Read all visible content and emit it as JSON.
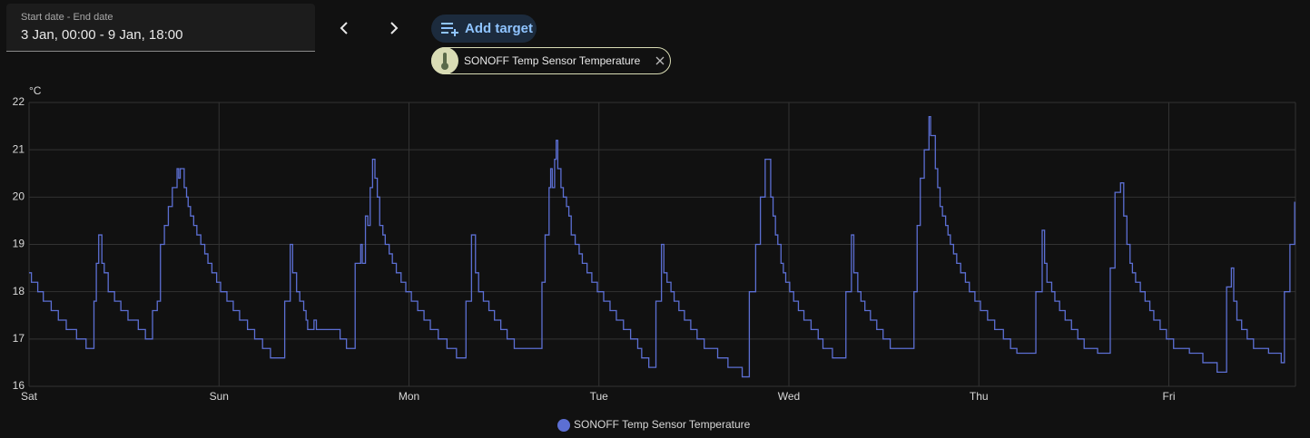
{
  "date_picker": {
    "label": "Start date - End date",
    "value": "3 Jan, 00:00 - 9 Jan, 18:00"
  },
  "add_target": "Add target",
  "target_chip": "SONOFF Temp Sensor Temperature",
  "chart_data": {
    "type": "line",
    "step": "after",
    "y_label": "°C",
    "grid": true,
    "legend": "bottom",
    "xlim": [
      0,
      160
    ],
    "xticks": [
      {
        "value": 0,
        "label": "Sat"
      },
      {
        "value": 24,
        "label": "Sun"
      },
      {
        "value": 48,
        "label": "Mon"
      },
      {
        "value": 72,
        "label": "Tue"
      },
      {
        "value": 96,
        "label": "Wed"
      },
      {
        "value": 120,
        "label": "Thu"
      },
      {
        "value": 144,
        "label": "Fri"
      }
    ],
    "ylim": [
      16,
      22
    ],
    "yticks": [
      16,
      17,
      18,
      19,
      20,
      21,
      22
    ],
    "x": [
      0,
      0.3,
      1.1,
      1.8,
      2.8,
      3.7,
      4.7,
      6.0,
      7.2,
      8.2,
      8.5,
      8.8,
      9.2,
      9.5,
      10.0,
      10.8,
      11.6,
      12.5,
      13.8,
      14.7,
      15.6,
      16.2,
      16.6,
      17.1,
      17.6,
      18.1,
      18.7,
      18.9,
      19.1,
      19.6,
      19.9,
      20.1,
      20.4,
      20.8,
      21.2,
      21.7,
      22.2,
      22.6,
      23.1,
      23.7,
      24.2,
      25.0,
      25.8,
      26.6,
      27.6,
      28.5,
      29.5,
      30.5,
      32.3,
      33.0,
      33.3,
      33.8,
      34.2,
      34.7,
      35.0,
      35.2,
      36.0,
      36.3,
      39.3,
      40.1,
      41.2,
      41.9,
      42.1,
      42.5,
      42.8,
      43.1,
      43.4,
      43.7,
      44.0,
      44.3,
      44.7,
      45.0,
      45.5,
      45.9,
      46.4,
      47.0,
      47.6,
      48.3,
      49.1,
      49.9,
      50.7,
      51.7,
      52.8,
      54.0,
      55.2,
      55.9,
      56.4,
      56.8,
      57.4,
      58.1,
      58.8,
      59.6,
      60.4,
      61.3,
      64.8,
      65.2,
      65.7,
      65.9,
      66.1,
      66.4,
      66.6,
      66.8,
      67.2,
      67.5,
      67.9,
      68.2,
      68.5,
      69.0,
      69.5,
      69.9,
      70.5,
      71.1,
      71.8,
      72.6,
      73.4,
      74.2,
      75.1,
      76.0,
      76.9,
      77.4,
      78.3,
      79.2,
      79.9,
      80.2,
      80.6,
      81.1,
      81.5,
      82.1,
      82.8,
      83.6,
      84.4,
      85.3,
      87.0,
      88.3,
      90.1,
      91.0,
      91.8,
      92.4,
      93.0,
      93.7,
      94.0,
      94.3,
      94.6,
      95.0,
      95.3,
      95.6,
      96.1,
      96.6,
      97.2,
      97.9,
      98.8,
      99.7,
      100.3,
      101.5,
      103.2,
      103.9,
      104.2,
      104.7,
      105.1,
      105.6,
      106.3,
      107.1,
      107.9,
      108.8,
      111.8,
      112.2,
      112.6,
      113.1,
      113.7,
      113.9,
      114.5,
      114.8,
      115.1,
      115.4,
      115.8,
      116.1,
      116.4,
      116.8,
      117.2,
      117.7,
      118.3,
      118.8,
      119.5,
      120.2,
      121.1,
      122.0,
      123.1,
      124.0,
      124.8,
      127.2,
      128.0,
      128.3,
      128.6,
      129.2,
      129.6,
      130.2,
      130.9,
      131.7,
      132.5,
      133.3,
      135.0,
      136.6,
      137.2,
      137.9,
      138.3,
      138.7,
      139.1,
      139.4,
      139.8,
      140.4,
      141.0,
      141.6,
      142.1,
      142.9,
      143.7,
      144.6,
      146.6,
      148.3,
      150.1,
      151.3,
      151.9,
      152.2,
      152.6,
      153.2,
      153.9,
      154.7,
      156.6,
      158.2,
      158.6,
      159.3,
      159.9
    ],
    "series": [
      {
        "name": "SONOFF Temp Sensor Temperature",
        "color": "#5c6fd3",
        "values": [
          18.4,
          18.2,
          18.0,
          17.8,
          17.6,
          17.4,
          17.2,
          17.0,
          16.8,
          17.8,
          18.6,
          19.2,
          18.6,
          18.4,
          18.0,
          17.8,
          17.6,
          17.4,
          17.2,
          17.0,
          17.6,
          17.8,
          19.0,
          19.4,
          19.8,
          20.2,
          20.6,
          20.4,
          20.6,
          20.2,
          20.0,
          19.8,
          19.6,
          19.4,
          19.2,
          19.0,
          18.8,
          18.6,
          18.4,
          18.2,
          18.0,
          17.8,
          17.6,
          17.4,
          17.2,
          17.0,
          16.8,
          16.6,
          17.8,
          19.0,
          18.4,
          18.0,
          17.8,
          17.6,
          17.4,
          17.2,
          17.4,
          17.2,
          17.0,
          16.8,
          18.6,
          19.0,
          18.6,
          19.6,
          19.4,
          20.2,
          20.8,
          20.4,
          20.0,
          19.4,
          19.2,
          19.0,
          18.8,
          18.6,
          18.4,
          18.2,
          18.0,
          17.8,
          17.6,
          17.4,
          17.2,
          17.0,
          16.8,
          16.6,
          17.8,
          19.2,
          18.4,
          18.0,
          17.8,
          17.6,
          17.4,
          17.2,
          17.0,
          16.8,
          18.2,
          19.2,
          20.2,
          20.6,
          20.2,
          20.8,
          21.2,
          20.6,
          20.2,
          20.0,
          19.8,
          19.6,
          19.2,
          19.0,
          18.8,
          18.6,
          18.4,
          18.2,
          18.0,
          17.8,
          17.6,
          17.4,
          17.2,
          17.0,
          16.8,
          16.6,
          16.4,
          17.8,
          19.0,
          18.4,
          18.2,
          18.0,
          17.8,
          17.6,
          17.4,
          17.2,
          17.0,
          16.8,
          16.6,
          16.4,
          16.2,
          18.0,
          19.0,
          20.0,
          20.8,
          20.0,
          19.6,
          19.2,
          19.0,
          18.6,
          18.4,
          18.2,
          18.0,
          17.8,
          17.6,
          17.4,
          17.2,
          17.0,
          16.8,
          16.6,
          18.0,
          19.2,
          18.4,
          18.0,
          17.8,
          17.6,
          17.4,
          17.2,
          17.0,
          16.8,
          18.0,
          19.4,
          20.4,
          21.0,
          21.7,
          21.3,
          20.6,
          20.2,
          19.8,
          19.6,
          19.4,
          19.2,
          19.0,
          18.8,
          18.6,
          18.4,
          18.2,
          18.0,
          17.8,
          17.6,
          17.4,
          17.2,
          17.0,
          16.8,
          16.7,
          18.0,
          19.3,
          18.6,
          18.2,
          18.0,
          17.8,
          17.6,
          17.4,
          17.2,
          17.0,
          16.8,
          16.7,
          18.5,
          20.1,
          20.3,
          19.6,
          19.0,
          18.6,
          18.4,
          18.2,
          18.0,
          17.8,
          17.6,
          17.4,
          17.2,
          17.0,
          16.8,
          16.7,
          16.5,
          16.3,
          18.1,
          18.5,
          17.8,
          17.4,
          17.2,
          17.0,
          16.8,
          16.7,
          16.5,
          18.0,
          19.0,
          19.9
        ]
      }
    ]
  }
}
